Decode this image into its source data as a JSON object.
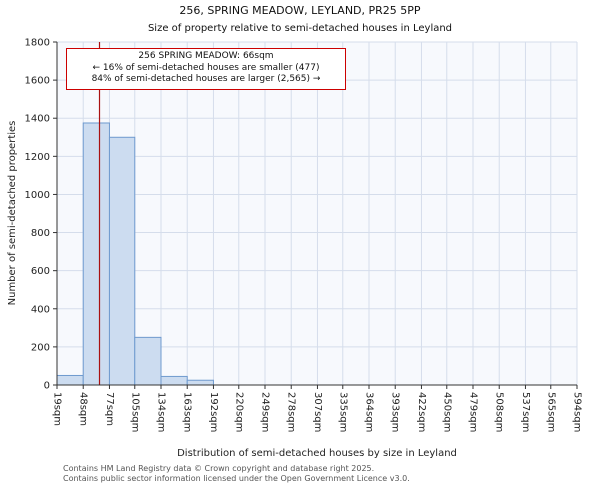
{
  "footer": {
    "line1": "Contains HM Land Registry data © Crown copyright and database right 2025.",
    "line2": "Contains public sector information licensed under the Open Government Licence v3.0."
  },
  "chart_data": {
    "type": "bar",
    "title": "256, SPRING MEADOW, LEYLAND, PR25 5PP",
    "subtitle": "Size of property relative to semi-detached houses in Leyland",
    "xlabel": "Distribution of semi-detached houses by size in Leyland",
    "ylabel": "Number of semi-detached properties",
    "x_tick_labels": [
      "19sqm",
      "48sqm",
      "77sqm",
      "105sqm",
      "134sqm",
      "163sqm",
      "192sqm",
      "220sqm",
      "249sqm",
      "278sqm",
      "307sqm",
      "335sqm",
      "364sqm",
      "393sqm",
      "422sqm",
      "450sqm",
      "479sqm",
      "508sqm",
      "537sqm",
      "565sqm",
      "594sqm"
    ],
    "bin_edges": [
      19,
      48,
      77,
      105,
      134,
      163,
      192,
      220,
      249,
      278,
      307,
      335,
      364,
      393,
      422,
      450,
      479,
      508,
      537,
      565,
      594
    ],
    "values": [
      50,
      1375,
      1300,
      250,
      45,
      25,
      0,
      0,
      0,
      0,
      0,
      0,
      0,
      0,
      0,
      0,
      0,
      0,
      0,
      0
    ],
    "ylim": [
      0,
      1800
    ],
    "y_ticks": [
      0,
      200,
      400,
      600,
      800,
      1000,
      1200,
      1400,
      1600,
      1800
    ],
    "grid": true,
    "legend": "none",
    "marker": {
      "label": "256 SPRING MEADOW",
      "value_sqm": 66,
      "smaller_pct": 16,
      "smaller_count": 477,
      "larger_pct": 84,
      "larger_count": 2565
    },
    "annotation": {
      "line1": "256 SPRING MEADOW: 66sqm",
      "line2": "← 16% of semi-detached houses are smaller (477)",
      "line3": "84% of semi-detached houses are larger (2,565) →"
    },
    "colors": {
      "bar_fill": "#ccdcf0",
      "bar_stroke": "#6f9ace",
      "grid": "#d5ddeb",
      "plot_bg": "#f7f9fd",
      "marker_line": "#aa1111",
      "annotation_border": "#cc0000",
      "axis": "#333333",
      "tick_text": "#222222"
    }
  }
}
